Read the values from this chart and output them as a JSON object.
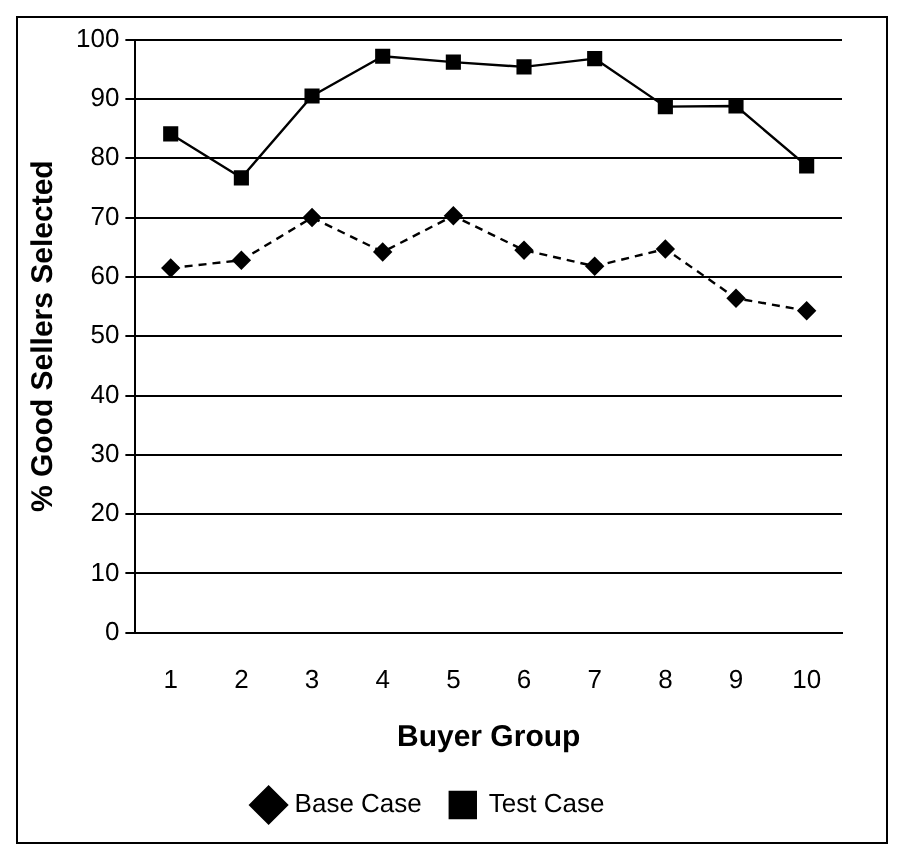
{
  "chart_data": {
    "type": "line",
    "xlabel": "Buyer Group",
    "ylabel": "% Good Sellers Selected",
    "categories": [
      "1",
      "2",
      "3",
      "4",
      "5",
      "6",
      "7",
      "8",
      "9",
      "10"
    ],
    "series": [
      {
        "name": "Base Case",
        "color": "#000000",
        "marker": "diamond",
        "line_style": "dashed",
        "values": [
          61.5,
          62.8,
          70,
          64.2,
          70.3,
          64.5,
          61.8,
          64.7,
          56.4,
          54.3
        ]
      },
      {
        "name": "Test Case",
        "color": "#000000",
        "marker": "square",
        "line_style": "solid",
        "values": [
          84.1,
          76.7,
          90.5,
          97.2,
          96.2,
          95.4,
          96.8,
          88.7,
          88.8,
          78.7
        ]
      }
    ],
    "ylim": [
      0,
      100
    ],
    "yticks": [
      0,
      10,
      20,
      30,
      40,
      50,
      60,
      70,
      80,
      90,
      100
    ],
    "grid": "y",
    "legend": "bottom"
  }
}
